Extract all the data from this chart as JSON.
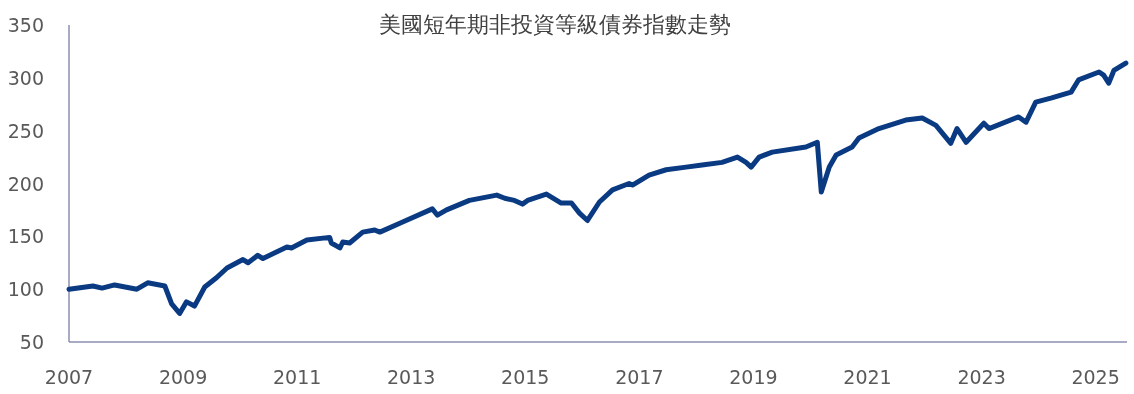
{
  "chart_data": {
    "type": "line",
    "title": "美國短年期非投資等級債券指數走勢",
    "x": [
      2007.0,
      2007.42,
      2007.58,
      2007.8,
      2008.19,
      2008.38,
      2008.68,
      2008.8,
      2008.94,
      2009.06,
      2009.2,
      2009.38,
      2009.59,
      2009.77,
      2010.05,
      2010.14,
      2010.31,
      2010.4,
      2010.82,
      2010.9,
      2011.17,
      2011.57,
      2011.6,
      2011.75,
      2011.8,
      2011.92,
      2012.15,
      2012.36,
      2012.45,
      2012.85,
      2013.37,
      2013.46,
      2013.62,
      2014.02,
      2014.5,
      2014.64,
      2014.81,
      2014.95,
      2015.04,
      2015.37,
      2015.63,
      2015.81,
      2015.95,
      2016.09,
      2016.3,
      2016.53,
      2016.82,
      2016.88,
      2017.17,
      2017.47,
      2017.82,
      2018.1,
      2018.45,
      2018.72,
      2018.87,
      2018.96,
      2019.1,
      2019.33,
      2019.92,
      2020.12,
      2020.19,
      2020.33,
      2020.45,
      2020.73,
      2020.85,
      2021.2,
      2021.67,
      2021.96,
      2022.2,
      2022.46,
      2022.57,
      2022.73,
      2023.04,
      2023.13,
      2023.65,
      2023.78,
      2023.95,
      2024.23,
      2024.57,
      2024.7,
      2025.06,
      2025.14,
      2025.23,
      2025.32,
      2025.53
    ],
    "series": [
      {
        "color": "#0a3a82",
        "values": [
          100,
          103,
          101,
          104,
          100,
          106,
          103,
          86,
          77,
          88,
          84,
          102,
          111,
          120,
          128,
          125,
          132,
          129,
          140,
          139,
          146.5,
          149,
          143.7,
          139,
          144.6,
          143.7,
          154,
          156,
          154,
          163.5,
          176,
          170,
          175,
          184,
          189,
          186,
          184,
          180.5,
          184,
          190,
          181.5,
          181.5,
          172,
          165,
          182.5,
          194,
          200,
          198.5,
          208,
          213,
          215.5,
          217.5,
          220,
          225,
          220,
          215.5,
          225,
          229.7,
          234.5,
          239,
          192,
          215.6,
          227,
          234.5,
          243,
          252,
          260,
          262,
          255,
          238,
          252,
          239,
          257,
          252,
          263,
          258,
          277,
          281,
          286.5,
          298,
          305.5,
          302.6,
          295,
          307,
          314
        ]
      }
    ],
    "xlim": [
      2007,
      2025.55
    ],
    "ylim": [
      50,
      350
    ],
    "xticks": [
      2007,
      2009,
      2011,
      2013,
      2015,
      2017,
      2019,
      2021,
      2023,
      2025
    ],
    "yticks": [
      50,
      100,
      150,
      200,
      250,
      300,
      350
    ]
  }
}
